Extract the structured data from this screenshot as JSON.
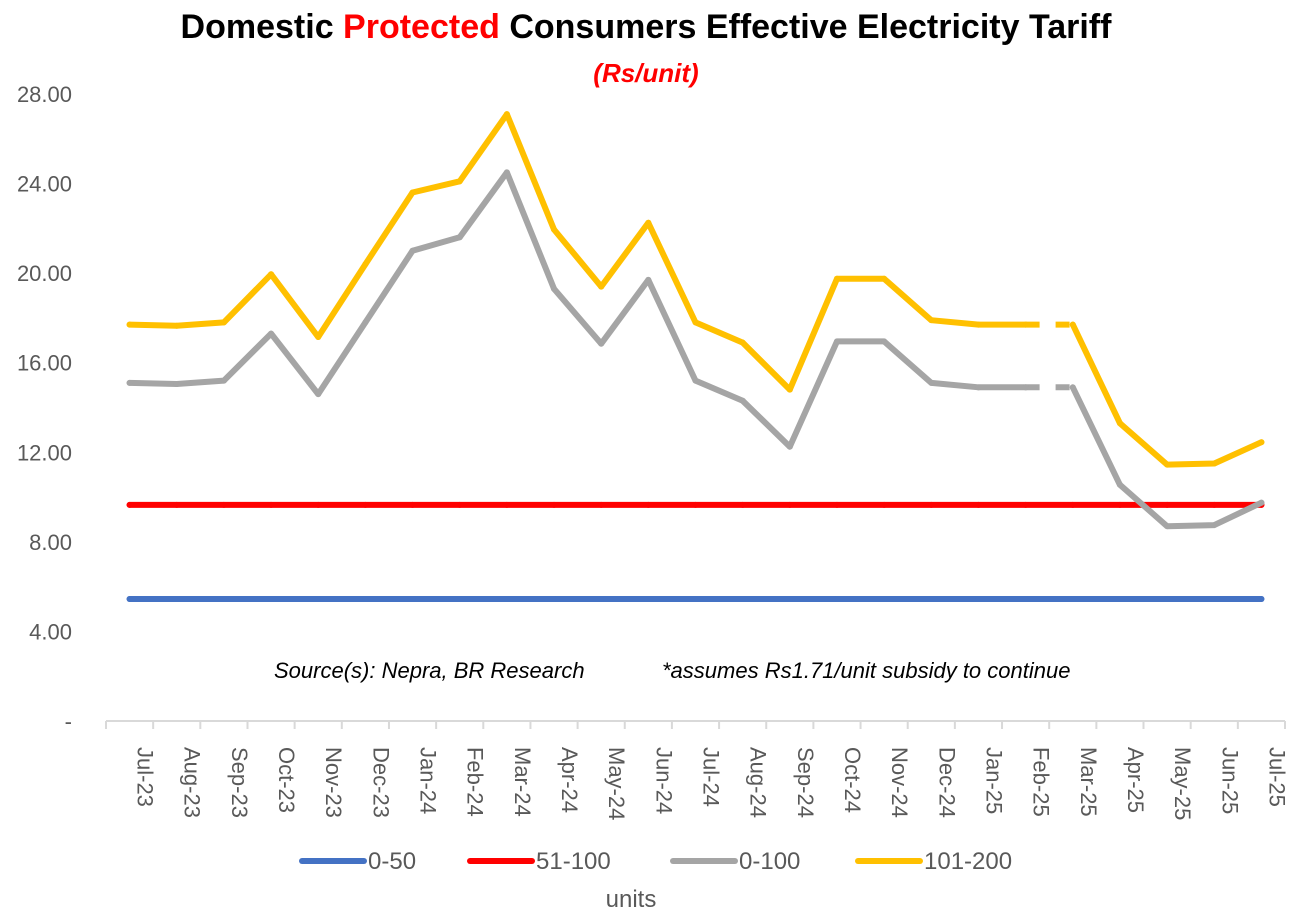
{
  "chart_data": {
    "type": "line",
    "title_parts": [
      "Domestic ",
      "Protected",
      " Consumers Effective Electricity Tariff"
    ],
    "subtitle": "(Rs/unit)",
    "xlabel": "units",
    "ylim": [
      0,
      28
    ],
    "y_ticks": [
      "-",
      "4.00",
      "8.00",
      "12.00",
      "16.00",
      "20.00",
      "24.00",
      "28.00"
    ],
    "y_tick_values": [
      0,
      4,
      8,
      12,
      16,
      20,
      24,
      28
    ],
    "categories": [
      "Jul-23",
      "Aug-23",
      "Sep-23",
      "Oct-23",
      "Nov-23",
      "Dec-23",
      "Jan-24",
      "Feb-24",
      "Mar-24",
      "Apr-24",
      "May-24",
      "Jun-24",
      "Jul-24",
      "Aug-24",
      "Sep-24",
      "Oct-24",
      "Nov-24",
      "Dec-24",
      "Jan-25",
      "Feb-25",
      "Mar-25",
      "Apr-25",
      "May-25",
      "Jun-25",
      "Jul-25"
    ],
    "grid": false,
    "legend_position": "bottom",
    "series": [
      {
        "name": "0-50",
        "color": "#4472c4",
        "values": [
          5.45,
          5.45,
          5.45,
          5.45,
          5.45,
          5.45,
          5.45,
          5.45,
          5.45,
          5.45,
          5.45,
          5.45,
          5.45,
          5.45,
          5.45,
          5.45,
          5.45,
          5.45,
          5.45,
          5.45,
          5.45,
          5.45,
          5.45,
          5.45,
          5.45
        ]
      },
      {
        "name": "51-100",
        "color": "#ff0000",
        "values": [
          9.65,
          9.65,
          9.65,
          9.65,
          9.65,
          9.65,
          9.65,
          9.65,
          9.65,
          9.65,
          9.65,
          9.65,
          9.65,
          9.65,
          9.65,
          9.65,
          9.65,
          9.65,
          9.65,
          9.65,
          9.65,
          9.65,
          9.65,
          9.65,
          9.65
        ]
      },
      {
        "name": "0-100",
        "color": "#a5a5a5",
        "values": [
          15.1,
          15.05,
          15.2,
          17.3,
          14.6,
          17.8,
          21.0,
          21.6,
          24.5,
          19.3,
          16.85,
          19.7,
          15.2,
          14.3,
          12.25,
          16.95,
          16.95,
          15.1,
          14.9,
          14.9,
          14.9,
          10.55,
          8.7,
          8.75,
          9.75
        ]
      },
      {
        "name": "101-200",
        "color": "#ffc000",
        "values": [
          17.7,
          17.65,
          17.8,
          19.95,
          17.15,
          20.4,
          23.6,
          24.1,
          27.1,
          21.95,
          19.4,
          22.25,
          17.8,
          16.9,
          14.8,
          19.75,
          19.75,
          17.9,
          17.7,
          17.7,
          17.7,
          13.3,
          11.45,
          11.5,
          12.45
        ]
      }
    ],
    "dashed_segment": [
      "Feb-25",
      "Mar-25"
    ]
  },
  "notes": {
    "source": "Source(s): Nepra, BR Research",
    "subsidy": "*assumes Rs1.71/unit subsidy to continue"
  }
}
